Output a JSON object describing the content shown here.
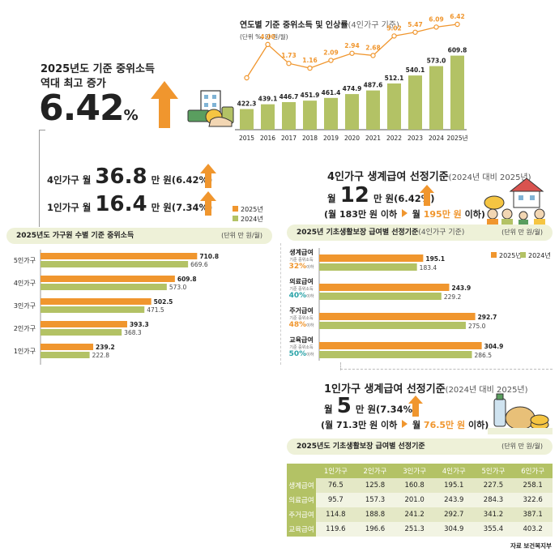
{
  "headline": {
    "line1": "2025년도 기준 중위소득",
    "line2": "역대 최고 증가",
    "rate": "6.42",
    "rate_unit": "%"
  },
  "trend": {
    "title": "연도별 기준 중위소득 및 인상률",
    "title_note": "(4인가구 기준)",
    "unit": "(단위 %, 만 원/월)"
  },
  "increase": {
    "four_prefix": "4인가구 월",
    "four_value": "36.8",
    "four_suffix": "만 원(6.42%)",
    "one_prefix": "1인가구 월",
    "one_value": "16.4",
    "one_suffix": "만 원(7.34%)"
  },
  "household_section": {
    "title": "2025년도 가구원 수별 기준 중위소득",
    "unit": "(단위 만 원/월)"
  },
  "four_benefit": {
    "title": "4인가구 생계급여 선정기준",
    "title_note": "(2024년 대비 2025년)",
    "line1_prefix": "월",
    "line1_value": "12",
    "line1_suffix": "만 원(6.42%)",
    "line2_a": "(월 183만 원 이하",
    "line2_b": "월",
    "line2_c": "195만 원",
    "line2_d": "이하)"
  },
  "benefit_section": {
    "title": "2025년 기초생활보장 급여별 선정기준",
    "title_note": "(4인가구 기준)",
    "unit": "(단위 만 원/월)"
  },
  "benefit_labels": [
    {
      "name": "생계급여",
      "sub": "기준 중위소득",
      "pct": "32%",
      "below": "이하"
    },
    {
      "name": "의료급여",
      "sub": "기준 중위소득",
      "pct": "40%",
      "below": "이하"
    },
    {
      "name": "주거급여",
      "sub": "기준 중위소득",
      "pct": "48%",
      "below": "이하"
    },
    {
      "name": "교육급여",
      "sub": "기준 중위소득",
      "pct": "50%",
      "below": "이하"
    }
  ],
  "one_benefit": {
    "title": "1인가구 생계급여 선정기준",
    "title_note": "(2024년 대비 2025년)",
    "line1_prefix": "월",
    "line1_value": "5",
    "line1_suffix": "만 원(7.34%)",
    "line2_a": "(월 71.3만 원 이하",
    "line2_b": "월",
    "line2_c": "76.5만 원",
    "line2_d": "이하)"
  },
  "table_section": {
    "title": "2025년도 기초생활보장 급여별 선정기준",
    "unit": "(단위 만 원/월)",
    "headers": [
      "",
      "1인가구",
      "2인가구",
      "3인가구",
      "4인가구",
      "5인가구",
      "6인가구"
    ],
    "rows": [
      [
        "생계급여",
        "76.5",
        "125.8",
        "160.8",
        "195.1",
        "227.5",
        "258.1"
      ],
      [
        "의료급여",
        "95.7",
        "157.3",
        "201.0",
        "243.9",
        "284.3",
        "322.6"
      ],
      [
        "주거급여",
        "114.8",
        "188.8",
        "241.2",
        "292.7",
        "341.2",
        "387.1"
      ],
      [
        "교육급여",
        "119.6",
        "196.6",
        "251.3",
        "304.9",
        "355.4",
        "403.2"
      ]
    ]
  },
  "source": "자료 보건복지부",
  "colors": {
    "orange": "#f0962e",
    "green": "#b3c265",
    "light": "#eef1d8",
    "teal": "#2aa3a8"
  },
  "chart_data": [
    {
      "type": "bar",
      "title": "연도별 기준 중위소득 및 인상률",
      "categories": [
        "2015",
        "2016",
        "2017",
        "2018",
        "2019",
        "2020",
        "2021",
        "2022",
        "2023",
        "2024",
        "2025년"
      ],
      "series": [
        {
          "name": "기준 중위소득",
          "values": [
            422.3,
            439.1,
            446.7,
            451.9,
            461.4,
            474.9,
            487.6,
            512.1,
            540.1,
            573.0,
            609.8
          ]
        },
        {
          "name": "인상률",
          "type": "line",
          "values": [
            null,
            4.0,
            1.73,
            1.16,
            2.09,
            2.94,
            2.68,
            5.02,
            5.47,
            6.09,
            6.42
          ]
        }
      ],
      "value_labels": [
        "422.3",
        "439.1",
        "446.7",
        "451.9",
        "461.4",
        "474.9",
        "487.6",
        "512.1",
        "540.1",
        "573.0",
        "609.8"
      ],
      "rate_labels": [
        "",
        "4.00",
        "1.73",
        "1.16",
        "2.09",
        "2.94",
        "2.68",
        "5.02",
        "5.47",
        "6.09",
        "6.42"
      ]
    },
    {
      "type": "bar",
      "orientation": "horizontal",
      "title": "2025년도 가구원 수별 기준 중위소득",
      "categories": [
        "5인가구",
        "4인가구",
        "3인가구",
        "2인가구",
        "1인가구"
      ],
      "legend": [
        "2025년",
        "2024년"
      ],
      "series": [
        {
          "name": "2025년",
          "values": [
            710.8,
            609.8,
            502.5,
            393.3,
            239.2
          ]
        },
        {
          "name": "2024년",
          "values": [
            669.6,
            573.0,
            471.5,
            368.3,
            222.8
          ]
        }
      ],
      "labels_2025": [
        "710.8",
        "609.8",
        "502.5",
        "393.3",
        "239.2"
      ],
      "labels_2024": [
        "669.6",
        "573.0",
        "471.5",
        "368.3",
        "222.8"
      ],
      "xlim": [
        0,
        800
      ]
    },
    {
      "type": "bar",
      "orientation": "horizontal",
      "title": "2025년 기초생활보장 급여별 선정기준",
      "categories": [
        "생계급여",
        "의료급여",
        "주거급여",
        "교육급여"
      ],
      "legend": [
        "2025년",
        "2024년"
      ],
      "series": [
        {
          "name": "2025년",
          "values": [
            195.1,
            243.9,
            292.7,
            304.9
          ]
        },
        {
          "name": "2024년",
          "values": [
            183.4,
            229.2,
            275.0,
            286.5
          ]
        }
      ],
      "labels_2025": [
        "195.1",
        "243.9",
        "292.7",
        "304.9"
      ],
      "labels_2024": [
        "183.4",
        "229.2",
        "275.0",
        "286.5"
      ],
      "xlim": [
        0,
        330
      ]
    }
  ]
}
